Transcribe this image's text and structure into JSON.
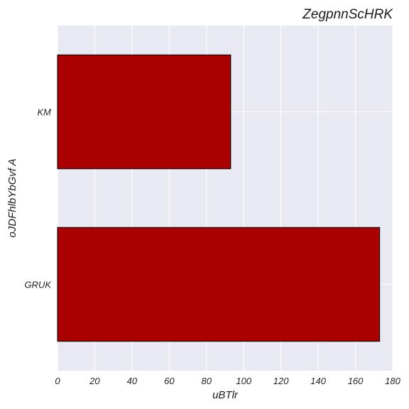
{
  "chart_data": {
    "type": "bar",
    "orientation": "horizontal",
    "title": "ZegpnnScHRK",
    "xlabel": "uBTlr",
    "ylabel": "oJDFhlbYbGvf A",
    "categories": [
      "KM",
      "GRUK"
    ],
    "values": [
      93,
      173
    ],
    "xlim": [
      0,
      180
    ],
    "xticks": [
      0,
      20,
      40,
      60,
      80,
      100,
      120,
      140,
      160,
      180
    ],
    "grid": true,
    "legend": "none",
    "colors": {
      "bar": "#aa0000",
      "bar_edge": "#000000",
      "plot_background": "#e8e9f2",
      "grid": "#ffffff"
    }
  }
}
